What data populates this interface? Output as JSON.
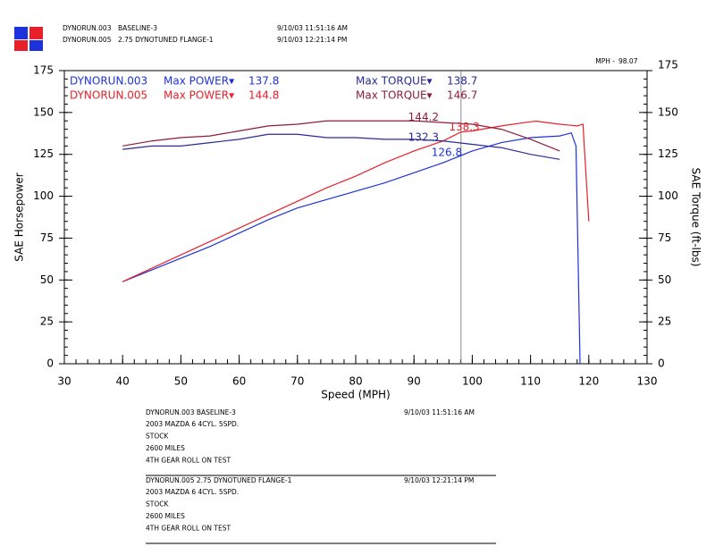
{
  "header": {
    "runs": [
      {
        "run": "DYNORUN.003",
        "desc": "BASELINE-3",
        "date": "9/10/03 11:51:16 AM"
      },
      {
        "run": "DYNORUN.005",
        "desc": "2.75 DYNOTUNED FLANGE-1",
        "date": "9/10/03 12:21:14 PM"
      }
    ]
  },
  "chart_data": {
    "type": "line",
    "x_label": "Speed (MPH)",
    "y_label": "SAE Horsepower",
    "y2_label": "SAE Torque (ft-lbs)",
    "xlim": [
      30,
      130
    ],
    "xticks": [
      30,
      40,
      50,
      60,
      70,
      80,
      90,
      100,
      110,
      120,
      130
    ],
    "ylim": [
      0,
      175
    ],
    "yticks": [
      0,
      25,
      50,
      75,
      100,
      125,
      150,
      175
    ],
    "y2lim": [
      0,
      175
    ],
    "y2ticks": [
      0,
      25,
      50,
      75,
      100,
      125,
      150,
      175
    ],
    "cursor_label": "MPH -",
    "cursor_speed": 98.07,
    "series": [
      {
        "name": "DYNORUN.003",
        "color": "#1e32dc",
        "x": [
          40,
          45,
          50,
          55,
          60,
          65,
          70,
          75,
          80,
          85,
          90,
          95,
          100,
          105,
          110,
          115,
          117,
          117.8,
          118.5
        ],
        "values": [
          49,
          56,
          63,
          70,
          78,
          86,
          93,
          98,
          103,
          108,
          114,
          120,
          127,
          132,
          135,
          136,
          137.8,
          130,
          0
        ]
      },
      {
        "name": "DYNORUN.005",
        "color": "#e8202a",
        "x": [
          40,
          45,
          50,
          55,
          60,
          65,
          70,
          75,
          80,
          85,
          90,
          95,
          98,
          100,
          105,
          110,
          111,
          115,
          118,
          119,
          120
        ],
        "values": [
          49,
          57,
          65,
          73,
          81,
          89,
          97,
          105,
          112,
          120,
          127,
          133,
          138.3,
          139,
          142,
          144.5,
          144.8,
          143,
          142,
          143,
          85
        ]
      },
      {
        "axis": "y2",
        "color": "#2a2a96",
        "x": [
          40,
          45,
          50,
          55,
          60,
          65,
          70,
          75,
          80,
          85,
          90,
          95,
          100,
          105,
          110,
          115
        ],
        "values": [
          128,
          130,
          130,
          132,
          134,
          137,
          137,
          135,
          135,
          134,
          134,
          133,
          131,
          129,
          125,
          122
        ]
      },
      {
        "axis": "y2",
        "color": "#8c1c3c",
        "x": [
          40,
          45,
          50,
          55,
          60,
          65,
          70,
          75,
          80,
          85,
          90,
          95,
          100,
          105,
          110,
          115
        ],
        "values": [
          130,
          133,
          135,
          136,
          139,
          142,
          143,
          145,
          145,
          145,
          145,
          144,
          143,
          140,
          134,
          127
        ]
      }
    ],
    "legend": [
      {
        "power_label": "Max POWER▾",
        "max_power": 137.8,
        "torque_label": "Max TORQUE▾",
        "max_torque": 138.7
      },
      {
        "power_label": "Max POWER▾",
        "max_power": 144.8,
        "torque_label": "Max TORQUE▾",
        "max_torque": 146.7
      }
    ],
    "annotations": [
      144.2,
      138.3,
      132.3,
      126.8
    ]
  },
  "notes": [
    {
      "title": "DYNORUN.003  BASELINE-3",
      "date": "9/10/03 11:51:16 AM",
      "lines": [
        "2003 MAZDA 6 4CYL. 5SPD.",
        "STOCK",
        "2600 MILES",
        "4TH GEAR ROLL ON TEST"
      ]
    },
    {
      "title": "DYNORUN.005  2.75 DYNOTUNED FLANGE-1",
      "date": "9/10/03 12:21:14 PM",
      "lines": [
        "2003 MAZDA 6 4CYL. 5SPD.",
        "STOCK",
        "2600 MILES",
        "4TH GEAR ROLL ON TEST"
      ]
    }
  ]
}
